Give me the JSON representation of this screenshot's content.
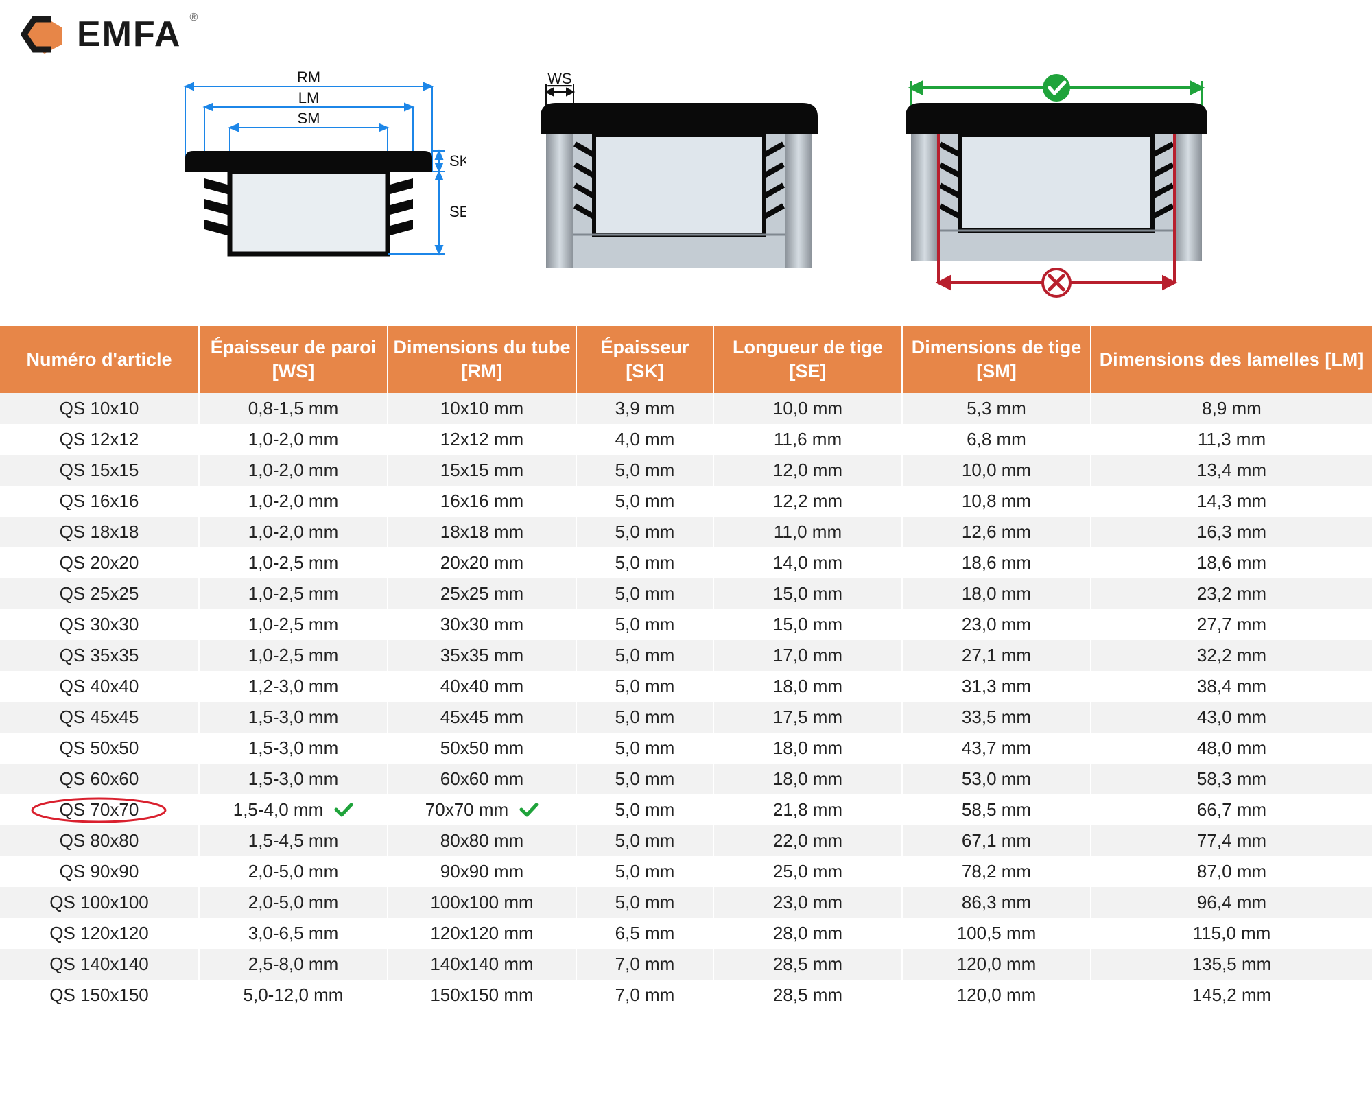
{
  "brand": {
    "name": "EMFA",
    "registered": "®"
  },
  "diagram": {
    "labels": {
      "rm": "RM",
      "lm": "LM",
      "sm": "SM",
      "sk": "SK",
      "se": "SE",
      "ws": "WS"
    },
    "colors": {
      "dim_blue": "#1c86e8",
      "cap_black": "#0a0a0a",
      "tube_gray_light": "#d6dde3",
      "tube_gray_mid": "#b8c1c9",
      "correct_green": "#1fa33b",
      "wrong_red": "#b81f2d",
      "lamella_dark": "#111111"
    },
    "logo_hex_color": "#e78648"
  },
  "table": {
    "header_bg": "#e78648",
    "header_fg": "#ffffff",
    "row_odd_bg": "#f2f2f2",
    "row_even_bg": "#ffffff",
    "highlight_ring_color": "#d9202e",
    "check_color": "#1fa33b",
    "columns": [
      "Numéro d'article",
      "Épaisseur de paroi [WS]",
      "Dimensions du tube [RM]",
      "Épaisseur [SK]",
      "Longueur de tige [SE]",
      "Dimensions de tige [SM]",
      "Dimensions des lamelles [LM]"
    ],
    "highlight_row_index": 13,
    "rows": [
      {
        "article": "QS 10x10",
        "ws": "0,8-1,5 mm",
        "rm": "10x10 mm",
        "sk": "3,9 mm",
        "se": "10,0 mm",
        "sm": "5,3 mm",
        "lm": "8,9 mm"
      },
      {
        "article": "QS 12x12",
        "ws": "1,0-2,0 mm",
        "rm": "12x12 mm",
        "sk": "4,0 mm",
        "se": "11,6 mm",
        "sm": "6,8 mm",
        "lm": "11,3 mm"
      },
      {
        "article": "QS 15x15",
        "ws": "1,0-2,0 mm",
        "rm": "15x15 mm",
        "sk": "5,0 mm",
        "se": "12,0 mm",
        "sm": "10,0 mm",
        "lm": "13,4 mm"
      },
      {
        "article": "QS 16x16",
        "ws": "1,0-2,0 mm",
        "rm": "16x16 mm",
        "sk": "5,0 mm",
        "se": "12,2 mm",
        "sm": "10,8 mm",
        "lm": "14,3 mm"
      },
      {
        "article": "QS 18x18",
        "ws": "1,0-2,0 mm",
        "rm": "18x18 mm",
        "sk": "5,0 mm",
        "se": "11,0 mm",
        "sm": "12,6 mm",
        "lm": "16,3 mm"
      },
      {
        "article": "QS 20x20",
        "ws": "1,0-2,5 mm",
        "rm": "20x20 mm",
        "sk": "5,0 mm",
        "se": "14,0 mm",
        "sm": "18,6 mm",
        "lm": "18,6 mm"
      },
      {
        "article": "QS 25x25",
        "ws": "1,0-2,5 mm",
        "rm": "25x25 mm",
        "sk": "5,0 mm",
        "se": "15,0 mm",
        "sm": "18,0 mm",
        "lm": "23,2 mm"
      },
      {
        "article": "QS 30x30",
        "ws": "1,0-2,5 mm",
        "rm": "30x30 mm",
        "sk": "5,0 mm",
        "se": "15,0 mm",
        "sm": "23,0 mm",
        "lm": "27,7 mm"
      },
      {
        "article": "QS 35x35",
        "ws": "1,0-2,5 mm",
        "rm": "35x35 mm",
        "sk": "5,0 mm",
        "se": "17,0 mm",
        "sm": "27,1 mm",
        "lm": "32,2 mm"
      },
      {
        "article": "QS 40x40",
        "ws": "1,2-3,0 mm",
        "rm": "40x40 mm",
        "sk": "5,0 mm",
        "se": "18,0 mm",
        "sm": "31,3 mm",
        "lm": "38,4 mm"
      },
      {
        "article": "QS 45x45",
        "ws": "1,5-3,0 mm",
        "rm": "45x45 mm",
        "sk": "5,0 mm",
        "se": "17,5 mm",
        "sm": "33,5 mm",
        "lm": "43,0 mm"
      },
      {
        "article": "QS 50x50",
        "ws": "1,5-3,0 mm",
        "rm": "50x50 mm",
        "sk": "5,0 mm",
        "se": "18,0 mm",
        "sm": "43,7 mm",
        "lm": "48,0 mm"
      },
      {
        "article": "QS 60x60",
        "ws": "1,5-3,0 mm",
        "rm": "60x60 mm",
        "sk": "5,0 mm",
        "se": "18,0 mm",
        "sm": "53,0 mm",
        "lm": "58,3 mm"
      },
      {
        "article": "QS 70x70",
        "ws": "1,5-4,0 mm",
        "rm": "70x70 mm",
        "sk": "5,0 mm",
        "se": "21,8 mm",
        "sm": "58,5 mm",
        "lm": "66,7 mm"
      },
      {
        "article": "QS 80x80",
        "ws": "1,5-4,5 mm",
        "rm": "80x80 mm",
        "sk": "5,0 mm",
        "se": "22,0 mm",
        "sm": "67,1 mm",
        "lm": "77,4 mm"
      },
      {
        "article": "QS 90x90",
        "ws": "2,0-5,0 mm",
        "rm": "90x90 mm",
        "sk": "5,0 mm",
        "se": "25,0 mm",
        "sm": "78,2 mm",
        "lm": "87,0 mm"
      },
      {
        "article": "QS 100x100",
        "ws": "2,0-5,0 mm",
        "rm": "100x100 mm",
        "sk": "5,0 mm",
        "se": "23,0 mm",
        "sm": "86,3 mm",
        "lm": "96,4 mm"
      },
      {
        "article": "QS 120x120",
        "ws": "3,0-6,5 mm",
        "rm": "120x120 mm",
        "sk": "6,5 mm",
        "se": "28,0 mm",
        "sm": "100,5 mm",
        "lm": "115,0 mm"
      },
      {
        "article": "QS 140x140",
        "ws": "2,5-8,0 mm",
        "rm": "140x140 mm",
        "sk": "7,0 mm",
        "se": "28,5 mm",
        "sm": "120,0 mm",
        "lm": "135,5 mm"
      },
      {
        "article": "QS 150x150",
        "ws": "5,0-12,0 mm",
        "rm": "150x150 mm",
        "sk": "7,0 mm",
        "se": "28,5 mm",
        "sm": "120,0 mm",
        "lm": "145,2 mm"
      }
    ]
  }
}
